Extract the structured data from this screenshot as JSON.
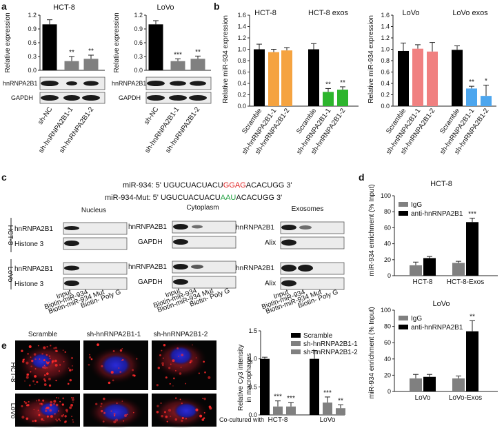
{
  "panel_labels": {
    "a": "a",
    "b": "b",
    "c": "c",
    "d": "d",
    "e": "e"
  },
  "panel_a": {
    "left": {
      "title": "HCT-8"
    },
    "right": {
      "title": "LoVo"
    },
    "ylabel": "Relative expression",
    "categories": [
      "sh-NC",
      "sh-hnRNPA2B1-1",
      "sh-hnRNPA2B1-2"
    ],
    "blot_rows": [
      "hnRNPA2B1",
      "GAPDH"
    ]
  },
  "panel_b": {
    "ylabel": "Relative miR-934 expression",
    "left_groups": [
      "HCT-8",
      "HCT-8 exos"
    ],
    "right_groups": [
      "LoVo",
      "LoVo exos"
    ],
    "categories": [
      "Scramble",
      "sh-hnRNPA2B1-1",
      "sh-hnRNPA2B1-2"
    ]
  },
  "panel_c": {
    "seq1": {
      "prefix": "miR-934: 5' UGUCUACUACU",
      "highlight": "GGAG",
      "suffix": "ACACUGG 3'",
      "color": "#e02020"
    },
    "seq2": {
      "prefix": "miR-934-Mut: 5' UGUCUACUACU",
      "highlight": "AAU",
      "suffix": "ACACUGG 3'",
      "color": "#20a040"
    },
    "columns": [
      "Nucleus",
      "Cytoplasm",
      "Exosomes"
    ],
    "row_groups": [
      "HCT-8",
      "LoVo"
    ],
    "blot_labels": {
      "nucleus": [
        "hnRNPA2B1",
        "Histone 3"
      ],
      "cytoplasm": [
        "hnRNPA2B1",
        "GAPDH"
      ],
      "exosomes": [
        "hnRNPA2B1",
        "Alix"
      ]
    },
    "lanes": [
      "Input",
      "Biotin-miR-934",
      "Biotin-miR-934 Mut",
      "Biotin- Poly G"
    ]
  },
  "panel_d": {
    "ylabel": "miR-934 enrichment (% Input)",
    "legend": [
      "IgG",
      "anti-hnRNPA2B1"
    ]
  },
  "panel_e": {
    "columns": [
      "Scramble",
      "sh-hnRNPA2B1-1",
      "sh-hnRNPA2B1-2"
    ],
    "rows": [
      "HCT-8",
      "LoVo"
    ],
    "ylabel_line1": "Relative Cy3 intensity",
    "ylabel_line2": "in macrophages",
    "xlabel_prefix": "Co-cultured with",
    "legend": [
      "Scramble",
      "sh-hnRNPA2B1-1",
      "sh-hnRNPA2B1-2"
    ]
  },
  "chart_data": [
    {
      "id": "a-left",
      "type": "bar",
      "title": "HCT-8",
      "ylabel": "Relative expression",
      "categories": [
        "sh-NC",
        "sh-hnRNPA2B1-1",
        "sh-hnRNPA2B1-2"
      ],
      "values": [
        1.0,
        0.2,
        0.25
      ],
      "errors": [
        0.1,
        0.1,
        0.08
      ],
      "sig": [
        "",
        "**",
        "**"
      ],
      "ylim": [
        0,
        1.2
      ],
      "yticks": [
        "0.0",
        "0.3",
        "0.6",
        "0.9",
        "1.2"
      ],
      "colors": [
        "#000000",
        "#808080",
        "#808080"
      ]
    },
    {
      "id": "a-right",
      "type": "bar",
      "title": "LoVo",
      "ylabel": "Relative expression",
      "categories": [
        "sh-NC",
        "sh-hnRNPA2B1-1",
        "sh-hnRNPA2B1-2"
      ],
      "values": [
        1.0,
        0.2,
        0.25
      ],
      "errors": [
        0.08,
        0.05,
        0.06
      ],
      "sig": [
        "",
        "***",
        "**"
      ],
      "ylim": [
        0,
        1.2
      ],
      "yticks": [
        "0.0",
        "0.3",
        "0.6",
        "0.9",
        "1.2"
      ],
      "colors": [
        "#000000",
        "#808080",
        "#808080"
      ]
    },
    {
      "id": "b-left",
      "type": "bar",
      "ylabel": "Relative miR-934 expression",
      "groups": [
        "HCT-8",
        "HCT-8 exos"
      ],
      "categories": [
        "Scramble",
        "sh-hnRNPA2B1-1",
        "sh-hnRNPA2B1-2",
        "Scramble",
        "sh-hnRNPA2B1-1",
        "sh-hnRNPA2B1-2"
      ],
      "values": [
        1.0,
        0.95,
        0.98,
        1.0,
        0.25,
        0.29
      ],
      "errors": [
        0.09,
        0.05,
        0.05,
        0.1,
        0.06,
        0.05
      ],
      "sig": [
        "",
        "",
        "",
        "",
        "**",
        "**"
      ],
      "ylim": [
        0,
        1.6
      ],
      "yticks": [
        "0.0",
        "0.2",
        "0.4",
        "0.6",
        "0.8",
        "1.0",
        "1.2",
        "1.4",
        "1.6"
      ],
      "colors": [
        "#000000",
        "#f5a340",
        "#f5a340",
        "#000000",
        "#2db52d",
        "#2db52d"
      ]
    },
    {
      "id": "b-right",
      "type": "bar",
      "ylabel": "Relative miR-934 expression",
      "groups": [
        "LoVo",
        "LoVo exos"
      ],
      "categories": [
        "Scramble",
        "sh-hnRNPA2B1-1",
        "sh-hnRNPA2B1-2",
        "Scramble",
        "sh-hnRNPA2B1-1",
        "sh-hnRNPA2B1-2"
      ],
      "values": [
        0.97,
        1.01,
        0.96,
        0.99,
        0.31,
        0.18
      ],
      "errors": [
        0.14,
        0.07,
        0.16,
        0.07,
        0.04,
        0.19
      ],
      "sig": [
        "",
        "",
        "",
        "",
        "**",
        "*"
      ],
      "ylim": [
        0,
        1.6
      ],
      "yticks": [
        "0.0",
        "0.2",
        "0.4",
        "0.6",
        "0.8",
        "1.0",
        "1.2",
        "1.4",
        "1.6"
      ],
      "colors": [
        "#000000",
        "#f08080",
        "#f08080",
        "#000000",
        "#4da6ee",
        "#4da6ee"
      ]
    },
    {
      "id": "d-top",
      "type": "bar",
      "title": "HCT-8",
      "ylabel": "miR-934 enrichment (% Input)",
      "categories": [
        "HCT-8",
        "HCT-8-Exos"
      ],
      "series": [
        {
          "name": "IgG",
          "values": [
            13,
            16
          ],
          "errors": [
            4,
            2
          ]
        },
        {
          "name": "anti-hnRNPA2B1",
          "values": [
            22,
            67
          ],
          "errors": [
            2,
            5
          ]
        }
      ],
      "sig": [
        "",
        "",
        "",
        "***"
      ],
      "ylim": [
        0,
        100
      ],
      "yticks": [
        "0",
        "20",
        "40",
        "60",
        "80",
        "100"
      ],
      "colors": [
        "#808080",
        "#000000"
      ]
    },
    {
      "id": "d-bottom",
      "type": "bar",
      "title": "LoVo",
      "ylabel": "miR-934 enrichment (% Input)",
      "categories": [
        "LoVo",
        "LoVo-Exos"
      ],
      "series": [
        {
          "name": "IgG",
          "values": [
            16,
            16
          ],
          "errors": [
            5,
            3
          ]
        },
        {
          "name": "anti-hnRNPA2B1",
          "values": [
            18,
            74
          ],
          "errors": [
            3,
            13
          ]
        }
      ],
      "sig": [
        "",
        "",
        "",
        "**"
      ],
      "ylim": [
        0,
        100
      ],
      "yticks": [
        "0",
        "20",
        "40",
        "60",
        "80",
        "100"
      ],
      "colors": [
        "#808080",
        "#000000"
      ]
    },
    {
      "id": "e-chart",
      "type": "bar",
      "ylabel": "Relative Cy3 intensity in macrophages",
      "xlabel": "Co-cultured with",
      "categories": [
        "HCT-8",
        "LoVo"
      ],
      "series": [
        {
          "name": "Scramble",
          "values": [
            1.0,
            1.0
          ],
          "errors": [
            0.03,
            0.15
          ]
        },
        {
          "name": "sh-hnRNPA2B1-1",
          "values": [
            0.15,
            0.22
          ],
          "errors": [
            0.1,
            0.1
          ]
        },
        {
          "name": "sh-hnRNPA2B1-2",
          "values": [
            0.15,
            0.12
          ],
          "errors": [
            0.07,
            0.06
          ]
        }
      ],
      "sig": [
        "",
        "",
        "",
        "***",
        "***",
        "**"
      ],
      "sig_order": [
        "HCT-8 S",
        "LoVo S",
        "HCT-8 1",
        "LoVo 1",
        "HCT-8 2",
        "LoVo 2"
      ],
      "ylim": [
        0,
        1.5
      ],
      "yticks": [
        "0.0",
        "0.5",
        "1.0",
        "1.5"
      ],
      "colors": [
        "#000000",
        "#808080",
        "#808080"
      ]
    }
  ]
}
